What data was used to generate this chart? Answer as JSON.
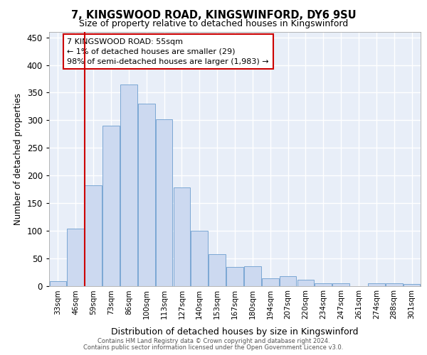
{
  "title_line1": "7, KINGSWOOD ROAD, KINGSWINFORD, DY6 9SU",
  "title_line2": "Size of property relative to detached houses in Kingswinford",
  "xlabel": "Distribution of detached houses by size in Kingswinford",
  "ylabel": "Number of detached properties",
  "categories": [
    "33sqm",
    "46sqm",
    "59sqm",
    "73sqm",
    "86sqm",
    "100sqm",
    "113sqm",
    "127sqm",
    "140sqm",
    "153sqm",
    "167sqm",
    "180sqm",
    "194sqm",
    "207sqm",
    "220sqm",
    "234sqm",
    "247sqm",
    "261sqm",
    "274sqm",
    "288sqm",
    "301sqm"
  ],
  "values": [
    8,
    103,
    182,
    290,
    365,
    330,
    302,
    178,
    100,
    57,
    34,
    36,
    14,
    18,
    11,
    5,
    5,
    0,
    5,
    4,
    3
  ],
  "bar_color": "#ccd9f0",
  "bar_edge_color": "#7ba7d4",
  "vline_color": "#cc0000",
  "vline_xindex": 2,
  "annotation_text": "7 KINGSWOOD ROAD: 55sqm\n← 1% of detached houses are smaller (29)\n98% of semi-detached houses are larger (1,983) →",
  "annotation_box_color": "#ffffff",
  "annotation_box_edge_color": "#cc0000",
  "ylim": [
    0,
    460
  ],
  "yticks": [
    0,
    50,
    100,
    150,
    200,
    250,
    300,
    350,
    400,
    450
  ],
  "footer_line1": "Contains HM Land Registry data © Crown copyright and database right 2024.",
  "footer_line2": "Contains public sector information licensed under the Open Government Licence v3.0.",
  "plot_bg_color": "#e8eef8",
  "fig_bg_color": "#ffffff"
}
